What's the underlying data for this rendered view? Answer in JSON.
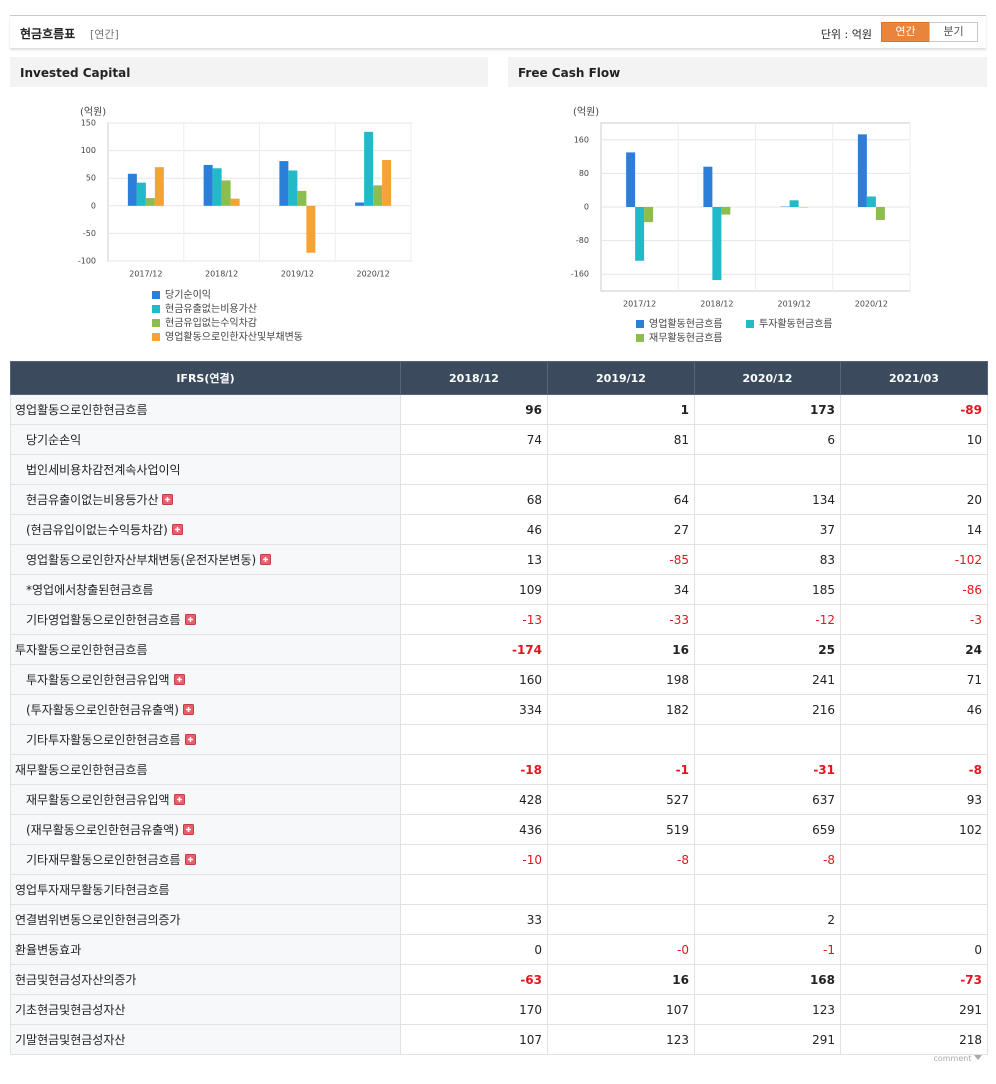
{
  "header": {
    "title": "현금흐름표",
    "period": "[연간]",
    "unit": "단위 : 억원",
    "tabs": [
      "연간",
      "분기"
    ],
    "active_tab": 0
  },
  "charts": [
    {
      "type": "bar",
      "title": "Invested Capital",
      "unit": "(억원)",
      "categories": [
        "2017/12",
        "2018/12",
        "2019/12",
        "2020/12"
      ],
      "series": [
        {
          "name": "당기순이익",
          "color": "#2c7fd8",
          "values": [
            58,
            74,
            81,
            6
          ]
        },
        {
          "name": "현금유출없는비용가산",
          "color": "#22b9c9",
          "values": [
            42,
            68,
            64,
            134
          ]
        },
        {
          "name": "현금유입없는수익차감",
          "color": "#8dbd4f",
          "values": [
            14,
            46,
            27,
            37
          ]
        },
        {
          "name": "영업활동으로인한자산및부채변동",
          "color": "#f6a334",
          "values": [
            70,
            13,
            -85,
            83
          ]
        }
      ],
      "ylim": [
        -100,
        150
      ],
      "yticks": [
        -100,
        -50,
        0,
        50,
        100,
        150
      ],
      "grid": true
    },
    {
      "type": "bar",
      "title": "Free Cash Flow",
      "unit": "(억원)",
      "categories": [
        "2017/12",
        "2018/12",
        "2019/12",
        "2020/12"
      ],
      "series": [
        {
          "name": "영업활동현금흐름",
          "color": "#2c7fd8",
          "values": [
            130,
            96,
            1,
            173
          ]
        },
        {
          "name": "투자활동현금흐름",
          "color": "#22b9c9",
          "values": [
            -128,
            -174,
            16,
            25
          ]
        },
        {
          "name": "재무활동현금흐름",
          "color": "#8dbd4f",
          "values": [
            -36,
            -18,
            -1,
            -31
          ]
        }
      ],
      "ylim": [
        -200,
        200
      ],
      "yticks": [
        -160,
        -80,
        0,
        80,
        160
      ],
      "grid": true
    }
  ],
  "table": {
    "columns": [
      "IFRS(연결)",
      "2018/12",
      "2019/12",
      "2020/12",
      "2021/03"
    ],
    "rows": [
      {
        "label": "영업활동으로인한현금흐름",
        "bold": true,
        "values": [
          "96",
          "1",
          "173",
          "-89"
        ]
      },
      {
        "label": "당기순손익",
        "sub": true,
        "values": [
          "74",
          "81",
          "6",
          "10"
        ]
      },
      {
        "label": "법인세비용차감전계속사업이익",
        "sub": true,
        "values": [
          null,
          null,
          null,
          null
        ]
      },
      {
        "label": "현금유출이없는비용등가산",
        "sub": true,
        "expandable": true,
        "values": [
          "68",
          "64",
          "134",
          "20"
        ]
      },
      {
        "label": "(현금유입이없는수익등차감)",
        "sub": true,
        "expandable": true,
        "values": [
          "46",
          "27",
          "37",
          "14"
        ]
      },
      {
        "label": "영업활동으로인한자산부채변동(운전자본변동)",
        "sub": true,
        "expandable": true,
        "values": [
          "13",
          "-85",
          "83",
          "-102"
        ]
      },
      {
        "label": "*영업에서창출된현금흐름",
        "sub": true,
        "values": [
          "109",
          "34",
          "185",
          "-86"
        ]
      },
      {
        "label": "기타영업활동으로인한현금흐름",
        "sub": true,
        "expandable": true,
        "values": [
          "-13",
          "-33",
          "-12",
          "-3"
        ]
      },
      {
        "label": "투자활동으로인한현금흐름",
        "bold": true,
        "values": [
          "-174",
          "16",
          "25",
          "24"
        ]
      },
      {
        "label": "투자활동으로인한현금유입액",
        "sub": true,
        "expandable": true,
        "values": [
          "160",
          "198",
          "241",
          "71"
        ]
      },
      {
        "label": "(투자활동으로인한현금유출액)",
        "sub": true,
        "expandable": true,
        "values": [
          "334",
          "182",
          "216",
          "46"
        ]
      },
      {
        "label": "기타투자활동으로인한현금흐름",
        "sub": true,
        "expandable": true,
        "values": [
          null,
          null,
          null,
          null
        ]
      },
      {
        "label": "재무활동으로인한현금흐름",
        "bold": true,
        "values": [
          "-18",
          "-1",
          "-31",
          "-8"
        ]
      },
      {
        "label": "재무활동으로인한현금유입액",
        "sub": true,
        "expandable": true,
        "values": [
          "428",
          "527",
          "637",
          "93"
        ]
      },
      {
        "label": "(재무활동으로인한현금유출액)",
        "sub": true,
        "expandable": true,
        "values": [
          "436",
          "519",
          "659",
          "102"
        ]
      },
      {
        "label": "기타재무활동으로인한현금흐름",
        "sub": true,
        "expandable": true,
        "values": [
          "-10",
          "-8",
          "-8",
          null
        ]
      },
      {
        "label": "영업투자재무활동기타현금흐름",
        "values": [
          null,
          null,
          null,
          null
        ]
      },
      {
        "label": "연결범위변동으로인한현금의증가",
        "values": [
          "33",
          null,
          "2",
          null
        ]
      },
      {
        "label": "환율변동효과",
        "values": [
          "0",
          "-0",
          "-1",
          "0"
        ]
      },
      {
        "label": "현금및현금성자산의증가",
        "bold": true,
        "values": [
          "-63",
          "16",
          "168",
          "-73"
        ]
      },
      {
        "label": "기초현금및현금성자산",
        "values": [
          "170",
          "107",
          "123",
          "291"
        ]
      },
      {
        "label": "기말현금및현금성자산",
        "values": [
          "107",
          "123",
          "291",
          "218"
        ]
      }
    ]
  },
  "footer": "comment"
}
